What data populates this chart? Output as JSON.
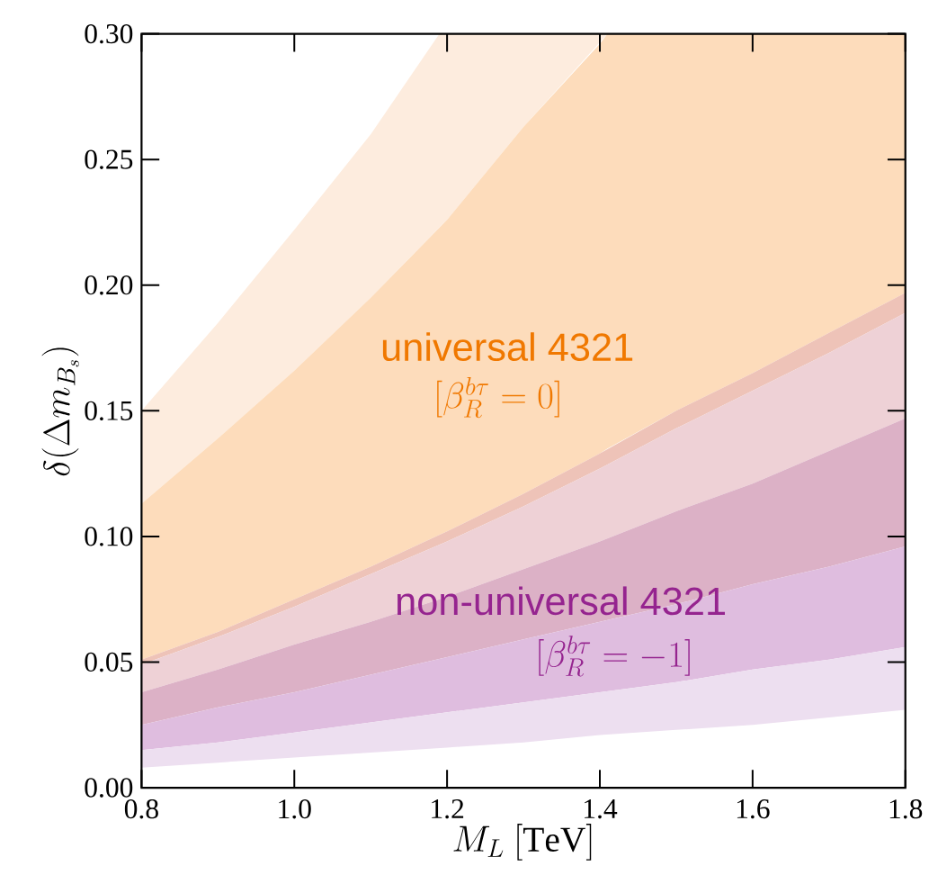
{
  "chart_data": {
    "type": "area",
    "xlabel": "M_L\\ [\\mathrm{TeV}]",
    "ylabel": "\\delta(\\Delta m_{B_s})",
    "xlim": [
      0.8,
      1.8
    ],
    "ylim": [
      0,
      0.3
    ],
    "xticks": [
      0.8,
      {
        "value": 1.0,
        "label": "1.0"
      },
      1.2,
      1.4,
      1.6,
      1.8
    ],
    "yticks": [
      {
        "value": 0,
        "label": "0.00"
      },
      0.05,
      {
        "value": 0.1,
        "label": "0.10"
      },
      0.15,
      {
        "value": 0.2,
        "label": "0.20"
      },
      0.25,
      {
        "value": 0.3,
        "label": "0.30"
      }
    ],
    "grid": false,
    "annotations": [
      "universal 4321",
      "[\\beta_R^{b\\tau} = 0]",
      "non-universal 4321",
      "[\\beta_R^{b\\tau} = -1]"
    ],
    "series": [
      {
        "color": "#fdecde",
        "x": [
          0.8,
          0.9,
          1.0,
          1.1,
          1.19,
          1.2,
          1.3,
          1.41
        ],
        "values": [
          null,
          null,
          null,
          null,
          null,
          null,
          null,
          null
        ],
        "upper": [
          0.15,
          0.185,
          0.222,
          0.26,
          0.3,
          0.3,
          0.3,
          0.3
        ],
        "lower": [
          0.113,
          0.139,
          0.166,
          0.195,
          0.223,
          0.226,
          0.263,
          0.3
        ]
      },
      {
        "color": "#fddcbb",
        "x": [
          0.8,
          0.9,
          1.0,
          1.1,
          1.2,
          1.3,
          1.4,
          1.41,
          1.5,
          1.6,
          1.7,
          1.8
        ],
        "values": [
          null,
          null,
          null,
          null,
          null,
          null,
          null,
          null,
          null,
          null,
          null,
          null
        ],
        "upper": [
          0.113,
          0.139,
          0.166,
          0.195,
          0.226,
          0.263,
          0.296,
          0.3,
          0.3,
          0.3,
          0.3,
          0.3
        ],
        "lower": [
          0.051,
          0.062,
          0.075,
          0.088,
          0.102,
          0.117,
          0.133,
          0.135,
          0.15,
          0.165,
          0.181,
          0.197
        ]
      },
      {
        "color": "#eec3b8",
        "x": [
          0.8,
          0.9,
          1.0,
          1.1,
          1.2,
          1.3,
          1.4,
          1.5,
          1.6,
          1.7,
          1.8
        ],
        "values": [
          null,
          null,
          null,
          null,
          null,
          null,
          null,
          null,
          null,
          null,
          null
        ],
        "upper": [
          0.051,
          0.062,
          0.075,
          0.088,
          0.102,
          0.117,
          0.133,
          0.15,
          0.165,
          0.181,
          0.197
        ],
        "lower": [
          0.049,
          0.06,
          0.072,
          0.085,
          0.098,
          0.112,
          0.127,
          0.143,
          0.158,
          0.173,
          0.189
        ]
      },
      {
        "color": "#eed1d6",
        "x": [
          0.8,
          0.9,
          1.0,
          1.1,
          1.2,
          1.3,
          1.4,
          1.5,
          1.6,
          1.7,
          1.8
        ],
        "values": [
          null,
          null,
          null,
          null,
          null,
          null,
          null,
          null,
          null,
          null,
          null
        ],
        "upper": [
          0.049,
          0.06,
          0.072,
          0.085,
          0.098,
          0.112,
          0.127,
          0.143,
          0.158,
          0.173,
          0.189
        ],
        "lower": [
          0.038,
          0.047,
          0.057,
          0.066,
          0.076,
          0.087,
          0.098,
          0.11,
          0.121,
          0.134,
          0.147
        ]
      },
      {
        "color": "#dcb1c6",
        "x": [
          0.8,
          0.9,
          1.0,
          1.1,
          1.2,
          1.3,
          1.4,
          1.5,
          1.6,
          1.7,
          1.8
        ],
        "values": [
          null,
          null,
          null,
          null,
          null,
          null,
          null,
          null,
          null,
          null,
          null
        ],
        "upper": [
          0.038,
          0.047,
          0.057,
          0.066,
          0.076,
          0.087,
          0.098,
          0.11,
          0.121,
          0.134,
          0.147
        ],
        "lower": [
          0.025,
          0.032,
          0.038,
          0.045,
          0.052,
          0.059,
          0.066,
          0.073,
          0.081,
          0.088,
          0.096
        ]
      },
      {
        "color": "#dfbddf",
        "x": [
          0.8,
          0.9,
          1.0,
          1.1,
          1.2,
          1.3,
          1.4,
          1.5,
          1.6,
          1.7,
          1.8
        ],
        "values": [
          null,
          null,
          null,
          null,
          null,
          null,
          null,
          null,
          null,
          null,
          null
        ],
        "upper": [
          0.025,
          0.032,
          0.038,
          0.045,
          0.052,
          0.059,
          0.066,
          0.073,
          0.081,
          0.088,
          0.096
        ],
        "lower": [
          0.015,
          0.018,
          0.022,
          0.026,
          0.03,
          0.034,
          0.038,
          0.042,
          0.047,
          0.051,
          0.056
        ]
      },
      {
        "color": "#eddff0",
        "x": [
          0.8,
          0.9,
          1.0,
          1.1,
          1.2,
          1.3,
          1.4,
          1.5,
          1.6,
          1.7,
          1.8
        ],
        "values": [
          null,
          null,
          null,
          null,
          null,
          null,
          null,
          null,
          null,
          null,
          null
        ],
        "upper": [
          0.015,
          0.018,
          0.022,
          0.026,
          0.03,
          0.034,
          0.038,
          0.042,
          0.047,
          0.051,
          0.056
        ],
        "lower": [
          0.008,
          0.01,
          0.012,
          0.014,
          0.016,
          0.018,
          0.021,
          0.023,
          0.025,
          0.028,
          0.031
        ]
      }
    ]
  }
}
